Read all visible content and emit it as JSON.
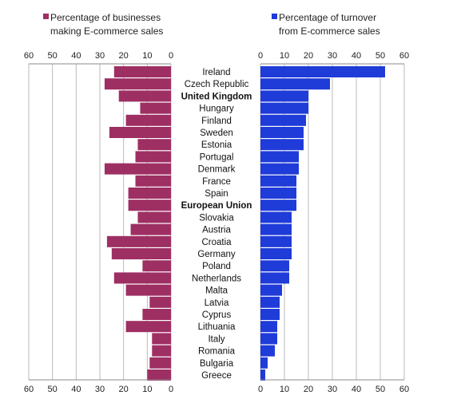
{
  "chart_data": {
    "type": "bar",
    "orientation": "horizontal",
    "layout": "back-to-back",
    "categories": [
      "Ireland",
      "Czech Republic",
      "United Kingdom",
      "Hungary",
      "Finland",
      "Sweden",
      "Estonia",
      "Portugal",
      "Denmark",
      "France",
      "Spain",
      "European Union",
      "Slovakia",
      "Austria",
      "Croatia",
      "Germany",
      "Poland",
      "Netherlands",
      "Malta",
      "Latvia",
      "Cyprus",
      "Lithuania",
      "Italy",
      "Romania",
      "Bulgaria",
      "Greece"
    ],
    "highlighted_categories": [
      "United Kingdom",
      "European Union"
    ],
    "series": [
      {
        "name": "Percentage of businesses making E-commerce sales",
        "legend_lines": [
          "Percentage of businesses",
          "making E-commerce sales"
        ],
        "color": "#9e2f63",
        "side": "left",
        "values": [
          24,
          28,
          22,
          13,
          19,
          26,
          14,
          15,
          28,
          15,
          18,
          18,
          14,
          17,
          27,
          25,
          12,
          24,
          19,
          9,
          12,
          19,
          8,
          8,
          9,
          10
        ]
      },
      {
        "name": "Percentage of turnover from E-commerce sales",
        "legend_lines": [
          "Percentage of turnover",
          "from E-commerce sales"
        ],
        "color": "#1f3bd8",
        "side": "right",
        "values": [
          52,
          29,
          20,
          20,
          19,
          18,
          18,
          16,
          16,
          15,
          15,
          15,
          13,
          13,
          13,
          13,
          12,
          12,
          9,
          8,
          8,
          7,
          7,
          6,
          3,
          2
        ]
      }
    ],
    "left_axis": {
      "ticks": [
        "60",
        "50",
        "40",
        "30",
        "20",
        "10",
        "0"
      ],
      "xlim": [
        0,
        60
      ],
      "reversed": true
    },
    "right_axis": {
      "ticks": [
        "0",
        "10",
        "20",
        "30",
        "40",
        "50",
        "60"
      ],
      "xlim": [
        0,
        60
      ]
    },
    "grid": true,
    "legend_position": "top"
  }
}
